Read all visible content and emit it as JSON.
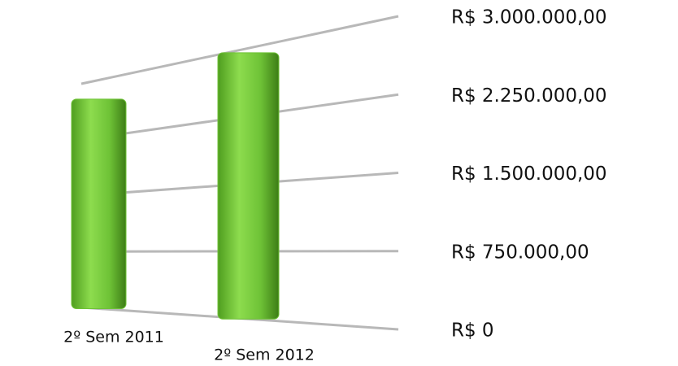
{
  "chart_data": {
    "type": "bar",
    "categories": [
      "2º Sem 2011",
      "2º Sem 2012"
    ],
    "values": [
      2750000,
      2950000
    ],
    "color": "#6ec236",
    "ylim": [
      0,
      3000000
    ],
    "yticks": [
      {
        "value": 0,
        "label": "R$ 0"
      },
      {
        "value": 750000,
        "label": "R$ 750.000,00"
      },
      {
        "value": 1500000,
        "label": "R$ 1.500.000,00"
      },
      {
        "value": 2250000,
        "label": "R$ 2.250.000,00"
      },
      {
        "value": 3000000,
        "label": "R$ 3.000.000,00"
      }
    ],
    "grid": true
  }
}
